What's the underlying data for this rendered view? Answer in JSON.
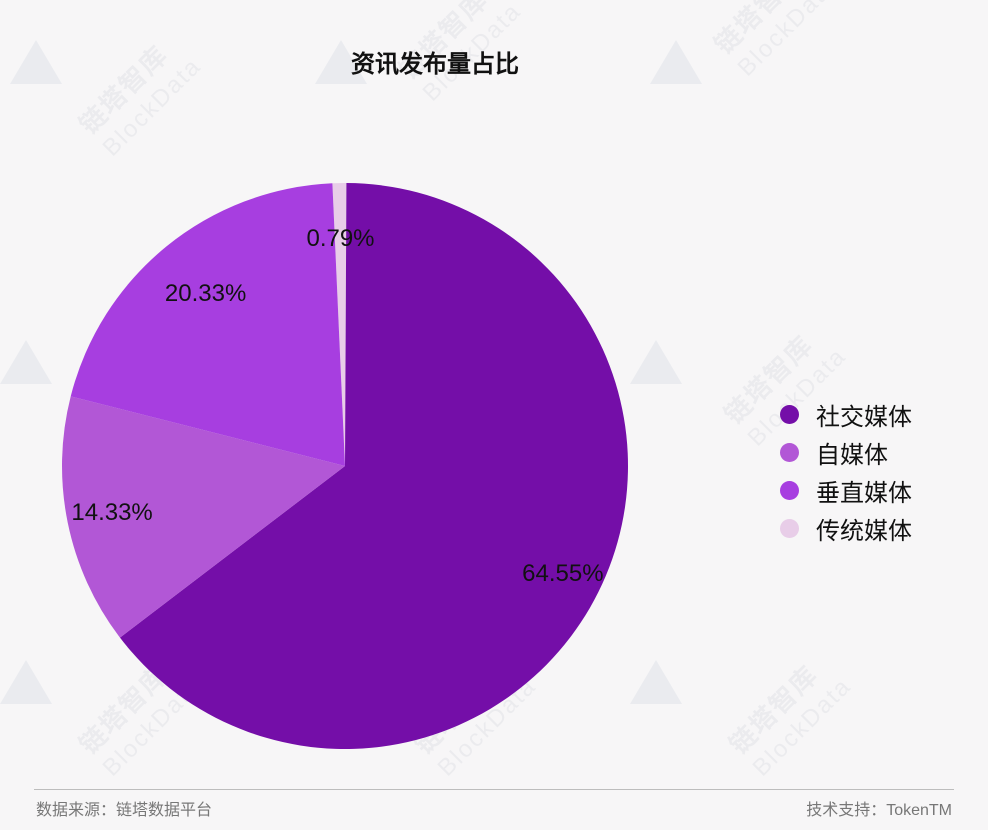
{
  "chart_data": {
    "type": "pie",
    "title": "资讯发布量占比",
    "slices": [
      {
        "name": "社交媒体",
        "value": 64.55,
        "label": "64.55%",
        "color": "#740ea8"
      },
      {
        "name": "自媒体",
        "value": 14.33,
        "label": "14.33%",
        "color": "#b257d6"
      },
      {
        "name": "垂直媒体",
        "value": 20.33,
        "label": "20.33%",
        "color": "#a73ee0"
      },
      {
        "name": "传统媒体",
        "value": 0.79,
        "label": "0.79%",
        "color": "#e8cde8"
      }
    ],
    "legend_position": "right"
  },
  "footer": {
    "source": "数据来源：链塔数据平台",
    "support": "技术支持：TokenTM"
  },
  "watermark": {
    "cn": "链塔智库",
    "en": "BlockData"
  }
}
